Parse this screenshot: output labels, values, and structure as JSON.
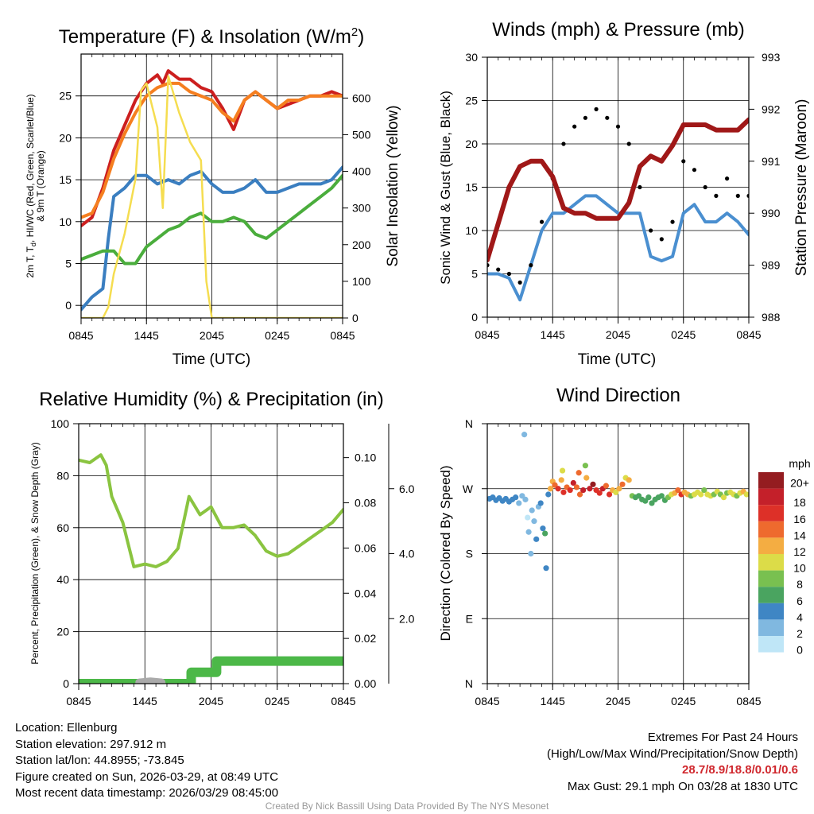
{
  "panels": {
    "temp": {
      "title": "Temperature (F) & Insolation (W/m²)",
      "ylabel_left": "2m T, Td, HI/WC (Red, Green, Scarlet/Blue) & 9m T (Orange)",
      "ylabel_left_line1": "2m T, T",
      "ylabel_left_sub": "d",
      "ylabel_left_line1b": ", HI/WC (Red, Green, Scarlet/Blue)",
      "ylabel_left_line2": "& 9m T (Orange)",
      "ylabel_right": "Solar Insolation (Yellow)",
      "xlabel": "Time (UTC)"
    },
    "wind": {
      "title": "Winds (mph) & Pressure (mb)",
      "ylabel_left": "Sonic Wind & Gust (Blue, Black)",
      "ylabel_right": "Station Pressure (Maroon)",
      "xlabel": "Time (UTC)"
    },
    "rh": {
      "title": "Relative Humidity (%) & Precipitation (in)",
      "ylabel_left": "Percent, Precipitation (Green), & Snow Depth (Gray)"
    },
    "wdir": {
      "title": "Wind Direction",
      "ylabel_left": "Direction (Colored By Speed)",
      "colorbar_unit": "mph",
      "colorbar_labels": [
        "20+",
        "18",
        "16",
        "14",
        "12",
        "10",
        "8",
        "6",
        "4",
        "2",
        "0"
      ]
    }
  },
  "chart_data": [
    {
      "id": "temp",
      "type": "line",
      "x_ticks": [
        "0845",
        "1445",
        "2045",
        "0245",
        "0845"
      ],
      "x_range_hours": [
        0,
        24
      ],
      "y_left": {
        "range": [
          -1.5,
          30
        ],
        "ticks": [
          0,
          5,
          10,
          15,
          20,
          25
        ]
      },
      "y_right": {
        "range": [
          0,
          720
        ],
        "ticks": [
          0,
          100,
          200,
          300,
          400,
          500,
          600
        ]
      },
      "series": [
        {
          "name": "2m T",
          "color": "#cc1f1f",
          "axis": "left",
          "x": [
            0,
            1,
            2,
            3,
            4,
            5,
            6,
            7,
            7.5,
            8,
            9,
            10,
            11,
            12,
            13,
            14,
            15,
            16,
            17,
            18,
            19,
            20,
            21,
            22,
            23,
            24
          ],
          "y": [
            9.5,
            10.5,
            14,
            18.5,
            21.5,
            24.5,
            26.5,
            27.5,
            26.5,
            28,
            27,
            27,
            26,
            25.5,
            23.5,
            21,
            24.5,
            25.5,
            24.5,
            23.5,
            24,
            24.5,
            25,
            25,
            25.5,
            25
          ]
        },
        {
          "name": "9m T",
          "color": "#f57f20",
          "axis": "left",
          "x": [
            0,
            1,
            2,
            3,
            4,
            5,
            6,
            7,
            8,
            9,
            10,
            11,
            12,
            13,
            14,
            15,
            16,
            17,
            18,
            19,
            20,
            21,
            22,
            23,
            24
          ],
          "y": [
            10.5,
            11,
            13.5,
            17.5,
            20.5,
            23,
            25,
            26,
            26.5,
            26.5,
            25.5,
            25,
            24.5,
            23,
            22,
            24.5,
            25.5,
            24.5,
            23.5,
            24.5,
            24.5,
            25,
            25,
            25,
            25
          ]
        },
        {
          "name": "HI/WC",
          "color": "#3a7ec0",
          "axis": "left",
          "x": [
            0,
            1,
            2,
            2.5,
            3,
            4,
            5,
            6,
            7,
            8,
            9,
            10,
            11,
            12,
            13,
            14,
            15,
            16,
            17,
            18,
            19,
            20,
            21,
            22,
            23,
            24
          ],
          "y": [
            -0.5,
            1,
            2,
            8,
            13,
            14,
            15.5,
            15.5,
            14.5,
            15,
            14.5,
            15.5,
            16,
            14.5,
            13.5,
            13.5,
            14,
            15,
            13.5,
            13.5,
            14,
            14.5,
            14.5,
            14.5,
            15,
            16.5
          ]
        },
        {
          "name": "2m Td",
          "color": "#4aad3c",
          "axis": "left",
          "x": [
            0,
            1,
            2,
            3,
            4,
            5,
            6,
            7,
            8,
            9,
            10,
            11,
            12,
            13,
            14,
            15,
            16,
            17,
            18,
            19,
            20,
            21,
            22,
            23,
            24
          ],
          "y": [
            5.5,
            6,
            6.5,
            6.5,
            5,
            5,
            7,
            8,
            9,
            9.5,
            10.5,
            11,
            10,
            10,
            10.5,
            10,
            8.5,
            8,
            9,
            10,
            11,
            12,
            13,
            14,
            15.5
          ]
        },
        {
          "name": "Solar Insolation",
          "color": "#f5dd50",
          "axis": "right",
          "x": [
            0,
            1,
            2,
            2.5,
            3,
            4,
            5,
            5.5,
            6,
            6.5,
            7,
            7.5,
            8,
            9,
            10,
            11,
            11.5,
            12,
            13,
            14,
            24
          ],
          "y": [
            0,
            0,
            0,
            30,
            120,
            230,
            380,
            620,
            640,
            580,
            520,
            300,
            660,
            560,
            480,
            430,
            100,
            0,
            0,
            0,
            0
          ]
        }
      ]
    },
    {
      "id": "wind",
      "type": "line",
      "x_ticks": [
        "0845",
        "1445",
        "2045",
        "0245",
        "0845"
      ],
      "y_left": {
        "range": [
          0,
          30
        ],
        "ticks": [
          0,
          5,
          10,
          15,
          20,
          25,
          30
        ]
      },
      "y_right": {
        "range": [
          988,
          993
        ],
        "ticks": [
          988,
          989,
          990,
          991,
          992,
          993
        ]
      },
      "series": [
        {
          "name": "Sonic Wind",
          "color": "#4a8fd0",
          "axis": "left",
          "x": [
            0,
            1,
            2,
            3,
            4,
            5,
            6,
            7,
            8,
            9,
            10,
            11,
            12,
            13,
            14,
            15,
            16,
            17,
            18,
            19,
            20,
            21,
            22,
            23,
            24
          ],
          "y": [
            5,
            5,
            4.5,
            2,
            6,
            10,
            12,
            12,
            13,
            14,
            14,
            13,
            12,
            12,
            12,
            7,
            6.5,
            7,
            12,
            13,
            11,
            11,
            12,
            11,
            9.5
          ]
        },
        {
          "name": "Gust",
          "color": "#000000",
          "axis": "left",
          "x": [
            0,
            1,
            2,
            3,
            4,
            5,
            6,
            7,
            8,
            9,
            10,
            11,
            12,
            13,
            14,
            15,
            16,
            17,
            18,
            19,
            20,
            21,
            22,
            23,
            24
          ],
          "y": [
            6,
            5.5,
            5,
            4,
            6,
            11,
            16,
            20,
            22,
            23,
            24,
            23,
            22,
            20,
            15,
            10,
            9,
            11,
            18,
            17,
            15,
            14,
            16,
            14,
            14
          ]
        },
        {
          "name": "Station Pressure",
          "color": "#a01818",
          "axis": "right",
          "x": [
            0,
            1,
            2,
            3,
            4,
            5,
            6,
            7,
            8,
            9,
            10,
            11,
            12,
            13,
            14,
            15,
            16,
            17,
            18,
            19,
            20,
            21,
            22,
            23,
            24
          ],
          "y": [
            989.1,
            989.8,
            990.5,
            990.9,
            991.0,
            991.0,
            990.7,
            990.1,
            990.0,
            990.0,
            989.9,
            989.9,
            989.9,
            990.2,
            990.9,
            991.1,
            991.0,
            991.3,
            991.7,
            991.7,
            991.7,
            991.6,
            991.6,
            991.6,
            991.8
          ]
        }
      ]
    },
    {
      "id": "rh",
      "type": "line",
      "x_ticks": [
        "0845",
        "1445",
        "2045",
        "0245",
        "0845"
      ],
      "y_left": {
        "range": [
          0,
          100
        ],
        "ticks": [
          0,
          20,
          40,
          60,
          80,
          100
        ]
      },
      "y_precip": {
        "range": [
          0,
          0.115
        ],
        "ticks": [
          0.0,
          0.02,
          0.04,
          0.06,
          0.08,
          0.1
        ],
        "tick_labels": [
          "0.00",
          "0.02",
          "0.04",
          "0.06",
          "0.08",
          "0.10"
        ]
      },
      "y_snow": {
        "range": [
          0,
          8
        ],
        "ticks": [
          2.0,
          4.0,
          6.0
        ],
        "tick_labels": [
          "2.0",
          "4.0",
          "6.0"
        ]
      },
      "series": [
        {
          "name": "Relative Humidity",
          "color": "#8ac440",
          "axis": "left",
          "x": [
            0,
            1,
            2,
            2.5,
            3,
            4,
            5,
            6,
            7,
            8,
            9,
            10,
            11,
            12,
            13,
            14,
            15,
            16,
            17,
            18,
            19,
            20,
            21,
            22,
            23,
            24
          ],
          "y": [
            86,
            85,
            88,
            84,
            72,
            62,
            45,
            46,
            45,
            47,
            52,
            72,
            65,
            68,
            60,
            60,
            61,
            57,
            51,
            49,
            50,
            53,
            56,
            59,
            62,
            67
          ]
        },
        {
          "name": "Precipitation",
          "color": "#4cb848",
          "axis": "precip",
          "x": [
            0,
            10.2,
            10.2,
            12.5,
            12.5,
            24
          ],
          "y": [
            0,
            0,
            0.005,
            0.005,
            0.01,
            0.01
          ]
        },
        {
          "name": "Snow Depth",
          "color": "#aaaaaa",
          "axis": "precip",
          "x": [
            5.5,
            6.5,
            7.5
          ],
          "y": [
            0.0005,
            0.001,
            0.0005
          ]
        }
      ]
    },
    {
      "id": "wdir",
      "type": "scatter",
      "x_ticks": [
        "0845",
        "1445",
        "2045",
        "0245",
        "0845"
      ],
      "y_ticks": [
        "N",
        "E",
        "S",
        "W",
        "N"
      ],
      "y_range_deg": [
        0,
        360
      ],
      "color_scale": {
        "bounds": [
          0,
          2,
          4,
          6,
          8,
          10,
          12,
          14,
          16,
          18,
          20,
          22
        ],
        "colors": [
          "#bfe6f7",
          "#80b8e0",
          "#3f86c4",
          "#4aa460",
          "#79c050",
          "#dcdc48",
          "#f4ad42",
          "#ee6a2e",
          "#dd3028",
          "#c4202a",
          "#941c20"
        ]
      },
      "points": [
        [
          0.2,
          256,
          4
        ],
        [
          0.5,
          258,
          4
        ],
        [
          0.8,
          254,
          4
        ],
        [
          1.1,
          257,
          5
        ],
        [
          1.4,
          253,
          4
        ],
        [
          1.7,
          256,
          4
        ],
        [
          2.0,
          252,
          5
        ],
        [
          2.3,
          255,
          4
        ],
        [
          2.6,
          258,
          4
        ],
        [
          2.9,
          250,
          3
        ],
        [
          3.2,
          260,
          3
        ],
        [
          3.4,
          345,
          2
        ],
        [
          3.5,
          255,
          2
        ],
        [
          3.7,
          230,
          1
        ],
        [
          3.8,
          210,
          2
        ],
        [
          4.0,
          180,
          2
        ],
        [
          4.1,
          240,
          3
        ],
        [
          4.3,
          225,
          2
        ],
        [
          4.5,
          200,
          4
        ],
        [
          4.7,
          245,
          3
        ],
        [
          4.9,
          250,
          5
        ],
        [
          5.1,
          215,
          4
        ],
        [
          5.3,
          208,
          6
        ],
        [
          5.4,
          160,
          4
        ],
        [
          5.6,
          262,
          4
        ],
        [
          5.8,
          270,
          12
        ],
        [
          6.0,
          280,
          12
        ],
        [
          6.2,
          275,
          14
        ],
        [
          6.5,
          270,
          16
        ],
        [
          6.8,
          282,
          13
        ],
        [
          7.0,
          265,
          16
        ],
        [
          7.3,
          272,
          14
        ],
        [
          7.6,
          268,
          16
        ],
        [
          7.9,
          278,
          18
        ],
        [
          8.2,
          272,
          14
        ],
        [
          8.5,
          262,
          14
        ],
        [
          8.8,
          268,
          18
        ],
        [
          9.1,
          285,
          12
        ],
        [
          9.4,
          270,
          18
        ],
        [
          9.7,
          276,
          20
        ],
        [
          10.0,
          268,
          16
        ],
        [
          10.3,
          264,
          16
        ],
        [
          10.6,
          270,
          18
        ],
        [
          10.9,
          274,
          14
        ],
        [
          11.2,
          262,
          16
        ],
        [
          11.5,
          268,
          12
        ],
        [
          11.8,
          265,
          10
        ],
        [
          12.1,
          270,
          12
        ],
        [
          12.4,
          276,
          14
        ],
        [
          12.7,
          285,
          10
        ],
        [
          13.0,
          282,
          12
        ],
        [
          13.3,
          260,
          8
        ],
        [
          13.6,
          258,
          6
        ],
        [
          13.9,
          260,
          6
        ],
        [
          14.2,
          255,
          6
        ],
        [
          14.5,
          253,
          6
        ],
        [
          14.8,
          258,
          6
        ],
        [
          15.1,
          250,
          6
        ],
        [
          15.4,
          255,
          6
        ],
        [
          15.7,
          258,
          6
        ],
        [
          16.0,
          260,
          6
        ],
        [
          16.3,
          254,
          6
        ],
        [
          16.6,
          258,
          8
        ],
        [
          16.9,
          262,
          10
        ],
        [
          17.2,
          264,
          12
        ],
        [
          17.5,
          268,
          14
        ],
        [
          17.8,
          262,
          16
        ],
        [
          18.1,
          265,
          12
        ],
        [
          18.4,
          262,
          12
        ],
        [
          18.7,
          260,
          8
        ],
        [
          19.0,
          262,
          10
        ],
        [
          19.3,
          265,
          10
        ],
        [
          19.6,
          262,
          10
        ],
        [
          19.9,
          268,
          8
        ],
        [
          20.2,
          262,
          10
        ],
        [
          20.5,
          260,
          10
        ],
        [
          20.8,
          262,
          8
        ],
        [
          21.1,
          266,
          10
        ],
        [
          21.4,
          262,
          8
        ],
        [
          21.7,
          258,
          10
        ],
        [
          22.0,
          264,
          8
        ],
        [
          22.3,
          265,
          10
        ],
        [
          22.6,
          262,
          10
        ],
        [
          22.9,
          260,
          8
        ],
        [
          23.2,
          264,
          10
        ],
        [
          23.5,
          266,
          12
        ],
        [
          23.8,
          262,
          10
        ],
        [
          6.9,
          295,
          10
        ],
        [
          9.0,
          302,
          8
        ],
        [
          8.4,
          292,
          14
        ]
      ]
    }
  ],
  "footer": {
    "location": "Location: Ellenburg",
    "elevation": "Station elevation: 297.912 m",
    "latlon": "Station lat/lon: 44.8955; -73.845",
    "created": "Figure created on Sun, 2026-03-29, at 08:49 UTC",
    "recent": "Most recent data timestamp: 2026/03/29 08:45:00",
    "extremes_title": "Extremes For Past 24 Hours",
    "extremes_legend": "(High/Low/Max Wind/Precipitation/Snow Depth)",
    "extremes_values": "28.7/8.9/18.8/0.01/0.6",
    "max_gust": "Max Gust: 29.1 mph On 03/28 at 1830 UTC",
    "credit": "Created By Nick Bassill Using Data Provided By The NYS Mesonet"
  }
}
